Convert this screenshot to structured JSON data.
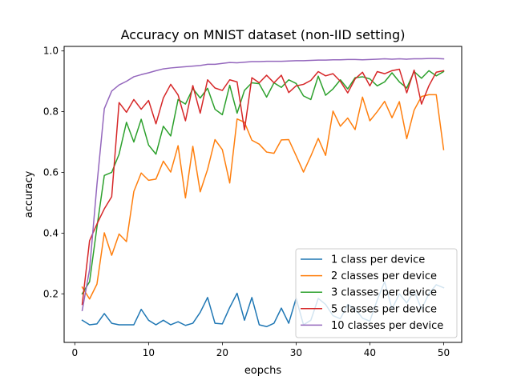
{
  "chart_data": {
    "type": "line",
    "title": "Accuracy on MNIST dataset (non-IID setting)",
    "xlabel": "eopchs",
    "ylabel": "accuracy",
    "xlim": [
      -1.45,
      52.45
    ],
    "ylim": [
      0.04,
      1.015
    ],
    "xticks": [
      0,
      10,
      20,
      30,
      40,
      50
    ],
    "yticks": [
      0.2,
      0.4,
      0.6,
      0.8,
      1.0
    ],
    "ytick_labels": [
      "0.2",
      "0.4",
      "0.6",
      "0.8",
      "1.0"
    ],
    "grid": false,
    "legend_position": "lower-right",
    "x": [
      1,
      2,
      3,
      4,
      5,
      6,
      7,
      8,
      9,
      10,
      11,
      12,
      13,
      14,
      15,
      16,
      17,
      18,
      19,
      20,
      21,
      22,
      23,
      24,
      25,
      26,
      27,
      28,
      29,
      30,
      31,
      32,
      33,
      34,
      35,
      36,
      37,
      38,
      39,
      40,
      41,
      42,
      43,
      44,
      45,
      46,
      47,
      48,
      49,
      50
    ],
    "series": [
      {
        "name": "1 class per device",
        "color": "#1f77b4",
        "values": [
          0.113,
          0.098,
          0.101,
          0.135,
          0.103,
          0.098,
          0.098,
          0.098,
          0.149,
          0.113,
          0.098,
          0.113,
          0.098,
          0.108,
          0.096,
          0.103,
          0.139,
          0.188,
          0.103,
          0.101,
          0.155,
          0.202,
          0.113,
          0.188,
          0.098,
          0.092,
          0.103,
          0.153,
          0.103,
          0.185,
          0.098,
          0.113,
          0.185,
          0.165,
          0.128,
          0.118,
          0.165,
          0.15,
          0.12,
          0.11,
          0.18,
          0.24,
          0.15,
          0.2,
          0.17,
          0.21,
          0.15,
          0.2,
          0.23,
          0.22
        ]
      },
      {
        "name": "2 classes per device",
        "color": "#ff7f0e",
        "values": [
          0.222,
          0.183,
          0.232,
          0.401,
          0.327,
          0.397,
          0.372,
          0.537,
          0.598,
          0.574,
          0.578,
          0.637,
          0.601,
          0.688,
          0.516,
          0.686,
          0.536,
          0.61,
          0.708,
          0.675,
          0.565,
          0.776,
          0.765,
          0.706,
          0.693,
          0.667,
          0.663,
          0.707,
          0.708,
          0.655,
          0.601,
          0.654,
          0.712,
          0.656,
          0.802,
          0.752,
          0.779,
          0.741,
          0.848,
          0.77,
          0.8,
          0.834,
          0.78,
          0.833,
          0.711,
          0.805,
          0.85,
          0.856,
          0.856,
          0.675
        ]
      },
      {
        "name": "3 classes per device",
        "color": "#2ca02c",
        "values": [
          0.2,
          0.24,
          0.42,
          0.59,
          0.6,
          0.66,
          0.765,
          0.7,
          0.775,
          0.69,
          0.66,
          0.752,
          0.72,
          0.84,
          0.825,
          0.876,
          0.845,
          0.877,
          0.808,
          0.79,
          0.887,
          0.795,
          0.87,
          0.895,
          0.892,
          0.848,
          0.895,
          0.88,
          0.905,
          0.893,
          0.852,
          0.84,
          0.917,
          0.854,
          0.875,
          0.905,
          0.875,
          0.912,
          0.915,
          0.908,
          0.885,
          0.898,
          0.928,
          0.898,
          0.878,
          0.932,
          0.91,
          0.935,
          0.918,
          0.932
        ]
      },
      {
        "name": "5 classes per device",
        "color": "#d62728",
        "values": [
          0.165,
          0.375,
          0.43,
          0.48,
          0.52,
          0.83,
          0.798,
          0.84,
          0.808,
          0.837,
          0.76,
          0.845,
          0.89,
          0.855,
          0.77,
          0.886,
          0.795,
          0.905,
          0.878,
          0.87,
          0.905,
          0.898,
          0.74,
          0.912,
          0.895,
          0.92,
          0.895,
          0.92,
          0.863,
          0.885,
          0.89,
          0.903,
          0.932,
          0.918,
          0.925,
          0.9,
          0.862,
          0.908,
          0.93,
          0.885,
          0.932,
          0.925,
          0.935,
          0.94,
          0.862,
          0.937,
          0.825,
          0.885,
          0.93,
          0.935
        ]
      },
      {
        "name": "10 classes per device",
        "color": "#9467bd",
        "values": [
          0.145,
          0.28,
          0.56,
          0.81,
          0.868,
          0.888,
          0.9,
          0.915,
          0.922,
          0.928,
          0.935,
          0.941,
          0.944,
          0.946,
          0.948,
          0.95,
          0.952,
          0.956,
          0.956,
          0.959,
          0.962,
          0.961,
          0.963,
          0.965,
          0.965,
          0.966,
          0.966,
          0.966,
          0.967,
          0.968,
          0.968,
          0.969,
          0.97,
          0.97,
          0.971,
          0.971,
          0.972,
          0.972,
          0.971,
          0.972,
          0.973,
          0.974,
          0.973,
          0.974,
          0.973,
          0.974,
          0.974,
          0.975,
          0.975,
          0.974
        ]
      }
    ]
  }
}
